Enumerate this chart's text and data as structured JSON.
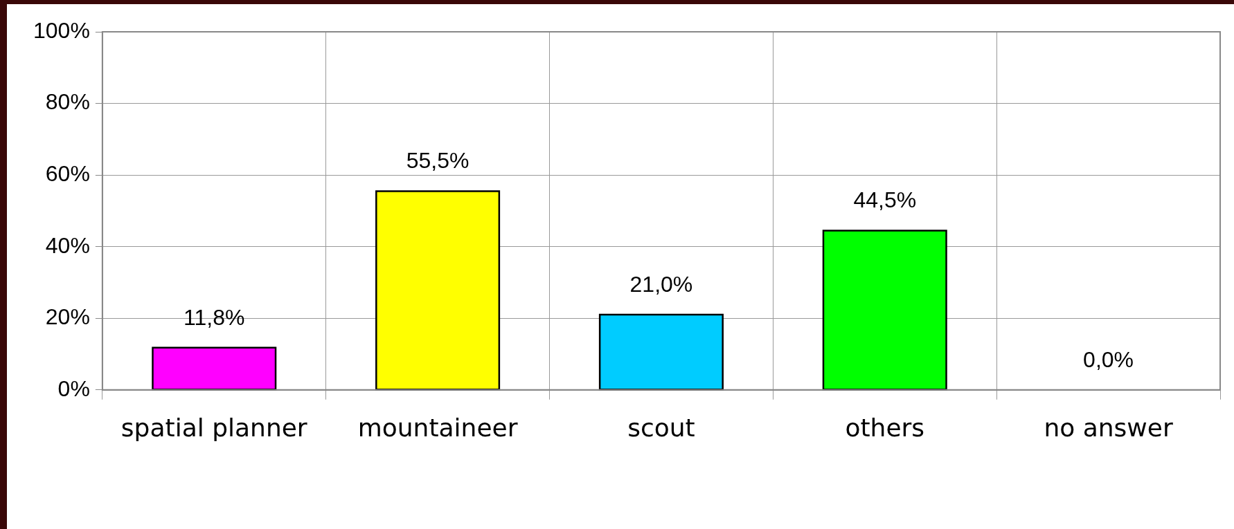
{
  "chart_data": {
    "type": "bar",
    "categories": [
      "spatial planner",
      "mountaineer",
      "scout",
      "others",
      "no answer"
    ],
    "values": [
      11.8,
      55.5,
      21.0,
      44.5,
      0.0
    ],
    "colors": [
      "#ff00ff",
      "#ffff00",
      "#00ccff",
      "#00ff00",
      "#808080"
    ],
    "value_labels": [
      "11,8%",
      "55,5%",
      "21,0%",
      "44,5%",
      "0,0%"
    ],
    "ylim": [
      0,
      100
    ],
    "yticks": [
      {
        "value": 0,
        "label": "0%"
      },
      {
        "value": 20,
        "label": "20%"
      },
      {
        "value": 40,
        "label": "40%"
      },
      {
        "value": 60,
        "label": "60%"
      },
      {
        "value": 80,
        "label": "80%"
      },
      {
        "value": 100,
        "label": "100%"
      }
    ],
    "grid": true,
    "legend": false
  }
}
